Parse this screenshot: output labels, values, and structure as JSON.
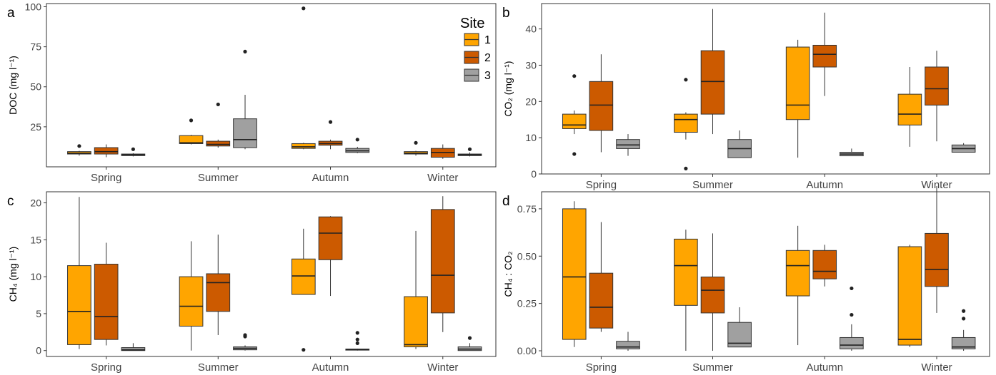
{
  "legend": {
    "title": "Site",
    "items": [
      {
        "label": "1",
        "color": "#FFA500"
      },
      {
        "label": "2",
        "color": "#CC5A00"
      },
      {
        "label": "3",
        "color": "#A0A0A0"
      }
    ]
  },
  "chart_data": [
    {
      "panel": "a",
      "type": "box",
      "ylabel": "DOC (mg l⁻¹)",
      "categories": [
        "Spring",
        "Summer",
        "Autumn",
        "Winter"
      ],
      "ylim": [
        0,
        102
      ],
      "yticks": [
        25,
        50,
        75,
        100
      ],
      "series": [
        {
          "name": "1",
          "boxes": [
            {
              "lw": 7,
              "q1": 8,
              "med": 8.5,
              "q3": 9.5,
              "uw": 10,
              "out": [
                13
              ]
            },
            {
              "lw": 14,
              "q1": 14.5,
              "med": 15,
              "q3": 19.5,
              "uw": 20,
              "out": [
                29
              ]
            },
            {
              "lw": 11,
              "q1": 11.5,
              "med": 12.5,
              "q3": 14.5,
              "uw": 15,
              "out": [
                99
              ]
            },
            {
              "lw": 7,
              "q1": 8,
              "med": 8.5,
              "q3": 9.5,
              "uw": 10,
              "out": [
                15
              ]
            }
          ]
        },
        {
          "name": "2",
          "boxes": [
            {
              "lw": 6,
              "q1": 8,
              "med": 9.5,
              "q3": 12,
              "uw": 14,
              "out": []
            },
            {
              "lw": 12,
              "q1": 13,
              "med": 14,
              "q3": 16,
              "uw": 17,
              "out": [
                39
              ]
            },
            {
              "lw": 11,
              "q1": 13.5,
              "med": 14.5,
              "q3": 16,
              "uw": 17,
              "out": [
                28
              ]
            },
            {
              "lw": 5,
              "q1": 6,
              "med": 9,
              "q3": 11.5,
              "uw": 14,
              "out": []
            }
          ]
        },
        {
          "name": "3",
          "boxes": [
            {
              "lw": 6.5,
              "q1": 7,
              "med": 7.5,
              "q3": 8,
              "uw": 8.5,
              "out": [
                11
              ]
            },
            {
              "lw": 11,
              "q1": 12,
              "med": 17,
              "q3": 30,
              "uw": 45,
              "out": [
                72
              ]
            },
            {
              "lw": 8.5,
              "q1": 9,
              "med": 10,
              "q3": 11.5,
              "uw": 12.5,
              "out": [
                17
              ]
            },
            {
              "lw": 6.5,
              "q1": 7,
              "med": 7.5,
              "q3": 8,
              "uw": 9,
              "out": [
                11
              ]
            }
          ]
        }
      ]
    },
    {
      "panel": "b",
      "type": "box",
      "ylabel": "CO₂ (mg l⁻¹)",
      "categories": [
        "Spring",
        "Summer",
        "Autumn",
        "Winter"
      ],
      "ylim": [
        0,
        47
      ],
      "yticks": [
        0,
        10,
        20,
        30,
        40
      ],
      "series": [
        {
          "name": "1",
          "boxes": [
            {
              "lw": 11,
              "q1": 12.5,
              "med": 13.5,
              "q3": 16.5,
              "uw": 17.5,
              "out": [
                5.5,
                27
              ]
            },
            {
              "lw": 9.5,
              "q1": 11.5,
              "med": 15,
              "q3": 16.5,
              "uw": 17,
              "out": [
                1.5,
                26
              ]
            },
            {
              "lw": 4.5,
              "q1": 15,
              "med": 19,
              "q3": 35,
              "uw": 37,
              "out": []
            },
            {
              "lw": 7.5,
              "q1": 13.5,
              "med": 16.5,
              "q3": 22,
              "uw": 29.5,
              "out": []
            }
          ]
        },
        {
          "name": "2",
          "boxes": [
            {
              "lw": 6,
              "q1": 12,
              "med": 19,
              "q3": 25.5,
              "uw": 33,
              "out": []
            },
            {
              "lw": 11,
              "q1": 16.5,
              "med": 25.5,
              "q3": 34,
              "uw": 45.5,
              "out": []
            },
            {
              "lw": 21.5,
              "q1": 29.5,
              "med": 33,
              "q3": 35.5,
              "uw": 44.5,
              "out": []
            },
            {
              "lw": 9,
              "q1": 19,
              "med": 23.5,
              "q3": 29.5,
              "uw": 34,
              "out": []
            }
          ]
        },
        {
          "name": "3",
          "boxes": [
            {
              "lw": 5,
              "q1": 7,
              "med": 8,
              "q3": 9.5,
              "uw": 11,
              "out": []
            },
            {
              "lw": 4.5,
              "q1": 4.5,
              "med": 7,
              "q3": 9.5,
              "uw": 12,
              "out": []
            },
            {
              "lw": 5,
              "q1": 5,
              "med": 5.5,
              "q3": 6,
              "uw": 7,
              "out": []
            },
            {
              "lw": 6,
              "q1": 6,
              "med": 7,
              "q3": 8,
              "uw": 8.5,
              "out": []
            }
          ]
        }
      ]
    },
    {
      "panel": "c",
      "type": "box",
      "ylabel": "CH₄ (mg l⁻¹)",
      "categories": [
        "Spring",
        "Summer",
        "Autumn",
        "Winter"
      ],
      "ylim": [
        -0.8,
        21.5
      ],
      "yticks": [
        0,
        5,
        10,
        15,
        20
      ],
      "series": [
        {
          "name": "1",
          "boxes": [
            {
              "lw": 0.2,
              "q1": 0.8,
              "med": 5.3,
              "q3": 11.5,
              "uw": 20.8,
              "out": []
            },
            {
              "lw": 0,
              "q1": 3.3,
              "med": 6,
              "q3": 10,
              "uw": 14.8,
              "out": []
            },
            {
              "lw": 7.6,
              "q1": 7.6,
              "med": 10.1,
              "q3": 12.4,
              "uw": 16.5,
              "out": [
                0.1
              ]
            },
            {
              "lw": 0.2,
              "q1": 0.5,
              "med": 0.8,
              "q3": 7.3,
              "uw": 16.2,
              "out": []
            }
          ]
        },
        {
          "name": "2",
          "boxes": [
            {
              "lw": 0.7,
              "q1": 1.5,
              "med": 4.6,
              "q3": 11.7,
              "uw": 14.6,
              "out": []
            },
            {
              "lw": 2.1,
              "q1": 5.3,
              "med": 9.2,
              "q3": 10.4,
              "uw": 15.7,
              "out": []
            },
            {
              "lw": 7.4,
              "q1": 12.3,
              "med": 15.9,
              "q3": 18.1,
              "uw": 18.2,
              "out": []
            },
            {
              "lw": 2.5,
              "q1": 5.1,
              "med": 10.2,
              "q3": 19.1,
              "uw": 20.9,
              "out": []
            }
          ]
        },
        {
          "name": "3",
          "boxes": [
            {
              "lw": 0,
              "q1": 0,
              "med": 0.1,
              "q3": 0.4,
              "uw": 1,
              "out": []
            },
            {
              "lw": 0,
              "q1": 0.1,
              "med": 0.3,
              "q3": 0.5,
              "uw": 0.7,
              "out": [
                1.9,
                2.1
              ]
            },
            {
              "lw": 0,
              "q1": 0.1,
              "med": 0.15,
              "q3": 0.2,
              "uw": 0.25,
              "out": [
                1,
                1.5,
                2.4
              ]
            },
            {
              "lw": 0,
              "q1": 0,
              "med": 0.2,
              "q3": 0.5,
              "uw": 1,
              "out": [
                1.7
              ]
            }
          ]
        }
      ]
    },
    {
      "panel": "d",
      "type": "box",
      "ylabel": "CH₄ : CO₂",
      "categories": [
        "Spring",
        "Summer",
        "Autumn",
        "Winter"
      ],
      "ylim": [
        -0.03,
        0.84
      ],
      "yticks": [
        0.0,
        0.25,
        0.5,
        0.75
      ],
      "series": [
        {
          "name": "1",
          "boxes": [
            {
              "lw": 0.02,
              "q1": 0.06,
              "med": 0.39,
              "q3": 0.75,
              "uw": 0.79,
              "out": []
            },
            {
              "lw": 0.0,
              "q1": 0.24,
              "med": 0.45,
              "q3": 0.59,
              "uw": 0.64,
              "out": []
            },
            {
              "lw": 0.03,
              "q1": 0.29,
              "med": 0.45,
              "q3": 0.53,
              "uw": 0.66,
              "out": []
            },
            {
              "lw": 0.02,
              "q1": 0.03,
              "med": 0.06,
              "q3": 0.55,
              "uw": 0.56,
              "out": []
            }
          ]
        },
        {
          "name": "2",
          "boxes": [
            {
              "lw": 0.1,
              "q1": 0.12,
              "med": 0.23,
              "q3": 0.41,
              "uw": 0.68,
              "out": []
            },
            {
              "lw": 0.0,
              "q1": 0.2,
              "med": 0.32,
              "q3": 0.39,
              "uw": 0.62,
              "out": []
            },
            {
              "lw": 0.34,
              "q1": 0.38,
              "med": 0.42,
              "q3": 0.53,
              "uw": 0.56,
              "out": []
            },
            {
              "lw": 0.2,
              "q1": 0.34,
              "med": 0.43,
              "q3": 0.62,
              "uw": 0.87,
              "out": []
            }
          ]
        },
        {
          "name": "3",
          "boxes": [
            {
              "lw": 0,
              "q1": 0.01,
              "med": 0.02,
              "q3": 0.05,
              "uw": 0.1,
              "out": []
            },
            {
              "lw": 0.02,
              "q1": 0.02,
              "med": 0.04,
              "q3": 0.15,
              "uw": 0.23,
              "out": []
            },
            {
              "lw": 0,
              "q1": 0.01,
              "med": 0.03,
              "q3": 0.07,
              "uw": 0.14,
              "out": [
                0.19,
                0.33
              ]
            },
            {
              "lw": 0,
              "q1": 0.01,
              "med": 0.02,
              "q3": 0.07,
              "uw": 0.11,
              "out": [
                0.17,
                0.21
              ]
            }
          ]
        }
      ]
    }
  ]
}
